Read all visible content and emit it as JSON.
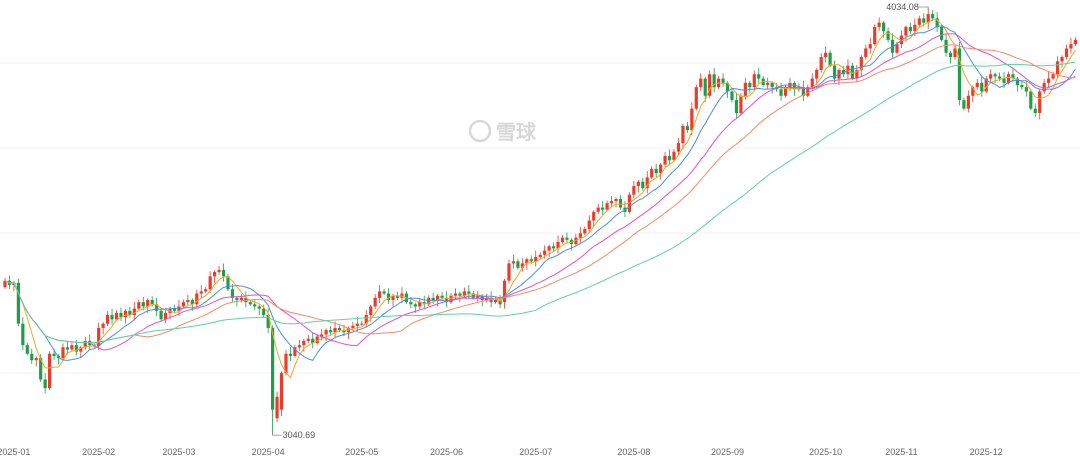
{
  "chart_data": {
    "type": "candlestick",
    "title": "",
    "watermark": "雪球",
    "colors": {
      "up": "#eb3b2a",
      "down": "#1e9e4a",
      "ma5": "#f5a623",
      "ma10": "#4a90e2",
      "ma20": "#e64fc5",
      "ma30": "#f7896a",
      "ma60": "#5ed3a2",
      "grid": "#f0f0f0"
    },
    "moving_averages": [
      5,
      10,
      20,
      30,
      60
    ],
    "annotations": {
      "max": {
        "label": "4034.08",
        "value": 4034.08,
        "index": 207
      },
      "min": {
        "label": "3040.69",
        "value": 3040.69,
        "index": 60
      }
    },
    "x_ticks": [
      {
        "label": "2025-01",
        "index": 2
      },
      {
        "label": "2025-02",
        "index": 21
      },
      {
        "label": "2025-03",
        "index": 39
      },
      {
        "label": "2025-04",
        "index": 59
      },
      {
        "label": "2025-05",
        "index": 80
      },
      {
        "label": "2025-06",
        "index": 99
      },
      {
        "label": "2025-07",
        "index": 119
      },
      {
        "label": "2025-08",
        "index": 141
      },
      {
        "label": "2025-09",
        "index": 162
      },
      {
        "label": "2025-10",
        "index": 184
      },
      {
        "label": "2025-11",
        "index": 201
      },
      {
        "label": "2025-12",
        "index": 220
      }
    ],
    "close": [
      3400,
      3390,
      3395,
      3300,
      3250,
      3230,
      3215,
      3220,
      3170,
      3150,
      3230,
      3225,
      3220,
      3245,
      3240,
      3250,
      3235,
      3245,
      3260,
      3250,
      3248,
      3290,
      3300,
      3320,
      3310,
      3325,
      3315,
      3330,
      3320,
      3335,
      3350,
      3340,
      3355,
      3345,
      3330,
      3310,
      3325,
      3335,
      3330,
      3340,
      3350,
      3355,
      3345,
      3370,
      3375,
      3380,
      3410,
      3420,
      3425,
      3410,
      3380,
      3360,
      3355,
      3360,
      3350,
      3345,
      3340,
      3335,
      3320,
      3290,
      3100,
      3130,
      3185,
      3230,
      3225,
      3245,
      3250,
      3260,
      3265,
      3255,
      3270,
      3275,
      3285,
      3280,
      3290,
      3285,
      3280,
      3290,
      3295,
      3300,
      3300,
      3320,
      3340,
      3360,
      3375,
      3370,
      3355,
      3365,
      3360,
      3370,
      3350,
      3345,
      3340,
      3350,
      3345,
      3360,
      3355,
      3365,
      3360,
      3350,
      3365,
      3370,
      3365,
      3375,
      3370,
      3360,
      3365,
      3355,
      3360,
      3350,
      3355,
      3345,
      3400,
      3440,
      3445,
      3430,
      3440,
      3450,
      3445,
      3455,
      3460,
      3470,
      3480,
      3475,
      3490,
      3500,
      3495,
      3485,
      3500,
      3510,
      3520,
      3540,
      3560,
      3570,
      3565,
      3580,
      3585,
      3590,
      3570,
      3560,
      3600,
      3620,
      3630,
      3615,
      3640,
      3660,
      3650,
      3670,
      3690,
      3680,
      3700,
      3720,
      3760,
      3750,
      3800,
      3850,
      3870,
      3830,
      3880,
      3850,
      3870,
      3860,
      3840,
      3820,
      3790,
      3830,
      3860,
      3850,
      3880,
      3870,
      3855,
      3860,
      3850,
      3845,
      3830,
      3850,
      3860,
      3845,
      3850,
      3830,
      3850,
      3870,
      3890,
      3920,
      3930,
      3900,
      3870,
      3890,
      3880,
      3900,
      3870,
      3890,
      3920,
      3940,
      3950,
      3990,
      4000,
      3980,
      3960,
      3930,
      3950,
      3970,
      3990,
      3980,
      3995,
      4010,
      4000,
      4020,
      4010,
      3990,
      3960,
      3930,
      3920,
      3940,
      3820,
      3800,
      3830,
      3850,
      3860,
      3840,
      3870,
      3880,
      3875,
      3870,
      3860,
      3880,
      3870,
      3855,
      3850,
      3840,
      3800,
      3790,
      3840,
      3860,
      3870,
      3880,
      3910,
      3920,
      3940,
      3950,
      3960
    ],
    "open": [
      3385,
      3400,
      3390,
      3395,
      3300,
      3250,
      3230,
      3215,
      3220,
      3170,
      3150,
      3230,
      3225,
      3220,
      3245,
      3240,
      3250,
      3235,
      3245,
      3260,
      3250,
      3248,
      3290,
      3300,
      3320,
      3310,
      3325,
      3315,
      3330,
      3320,
      3335,
      3350,
      3340,
      3355,
      3345,
      3330,
      3310,
      3325,
      3335,
      3330,
      3340,
      3350,
      3355,
      3345,
      3370,
      3375,
      3380,
      3410,
      3420,
      3425,
      3410,
      3380,
      3360,
      3355,
      3360,
      3350,
      3345,
      3340,
      3335,
      3320,
      3290,
      3080,
      3100,
      3185,
      3230,
      3225,
      3245,
      3250,
      3260,
      3265,
      3255,
      3270,
      3275,
      3285,
      3280,
      3290,
      3285,
      3280,
      3290,
      3295,
      3300,
      3300,
      3320,
      3340,
      3360,
      3375,
      3370,
      3355,
      3365,
      3360,
      3370,
      3350,
      3345,
      3340,
      3350,
      3345,
      3360,
      3355,
      3365,
      3360,
      3350,
      3365,
      3370,
      3365,
      3375,
      3370,
      3360,
      3365,
      3355,
      3360,
      3350,
      3355,
      3350,
      3400,
      3440,
      3445,
      3430,
      3440,
      3450,
      3445,
      3455,
      3460,
      3470,
      3480,
      3475,
      3490,
      3500,
      3495,
      3485,
      3500,
      3510,
      3520,
      3540,
      3560,
      3570,
      3565,
      3580,
      3585,
      3590,
      3570,
      3560,
      3600,
      3620,
      3630,
      3615,
      3640,
      3660,
      3650,
      3670,
      3690,
      3680,
      3700,
      3720,
      3760,
      3750,
      3800,
      3850,
      3870,
      3830,
      3880,
      3850,
      3870,
      3860,
      3840,
      3820,
      3790,
      3830,
      3860,
      3850,
      3880,
      3870,
      3855,
      3860,
      3850,
      3845,
      3830,
      3850,
      3860,
      3845,
      3850,
      3830,
      3850,
      3870,
      3890,
      3920,
      3930,
      3900,
      3870,
      3890,
      3880,
      3900,
      3870,
      3890,
      3920,
      3940,
      3950,
      3990,
      4000,
      3980,
      3960,
      3930,
      3950,
      3970,
      3990,
      3980,
      3995,
      4010,
      4000,
      4020,
      4010,
      3990,
      3960,
      3930,
      3920,
      3940,
      3820,
      3800,
      3830,
      3850,
      3860,
      3840,
      3870,
      3880,
      3875,
      3870,
      3860,
      3880,
      3870,
      3855,
      3850,
      3840,
      3800,
      3790,
      3840,
      3860,
      3870,
      3880,
      3910,
      3920,
      3940,
      3950
    ]
  }
}
